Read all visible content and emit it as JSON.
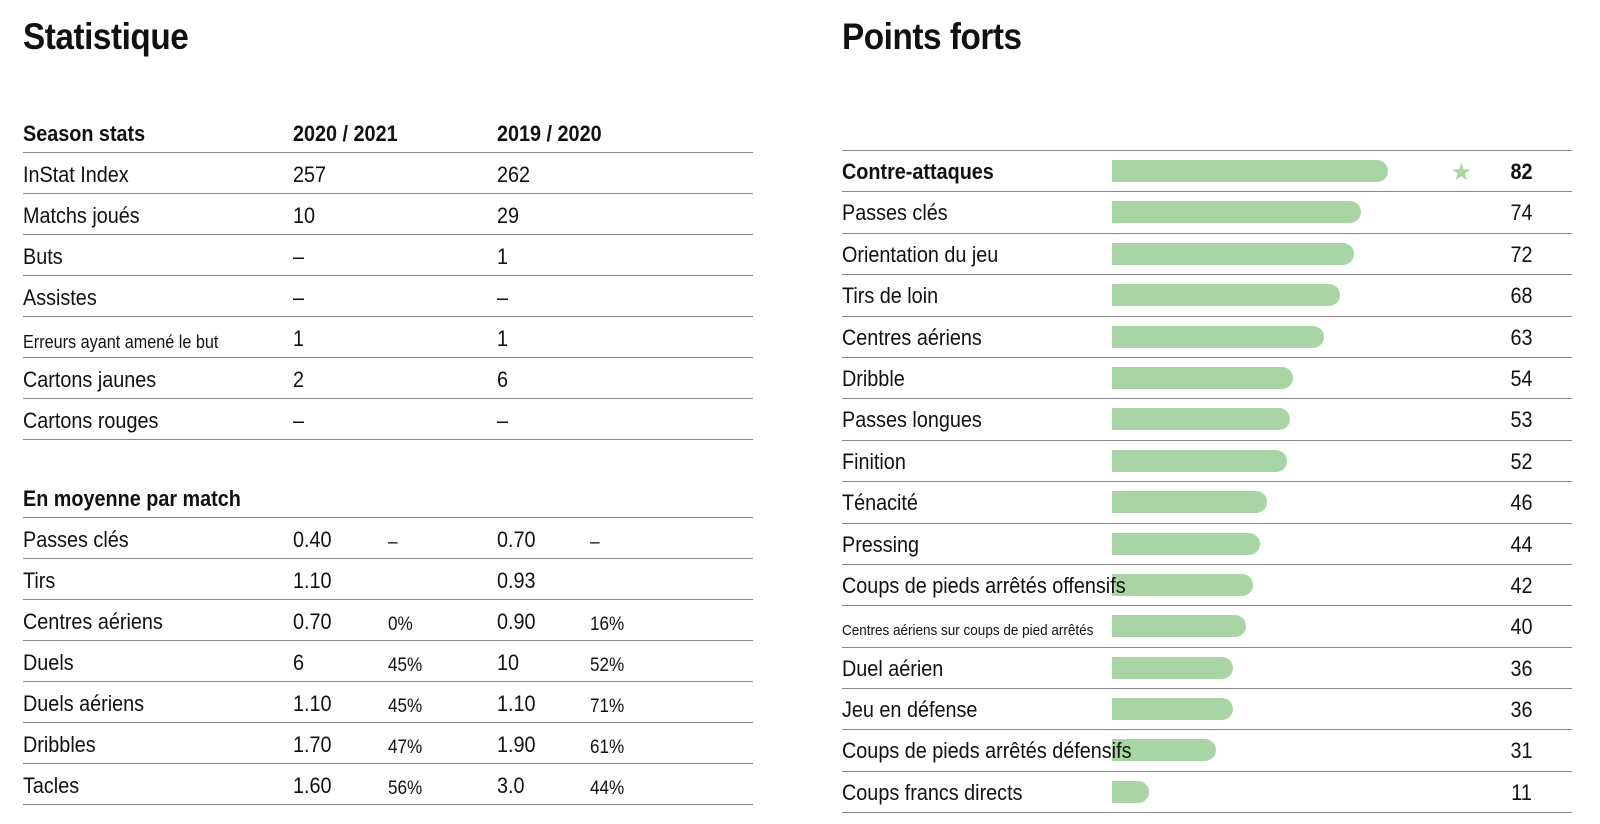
{
  "left": {
    "title": "Statistique",
    "season": {
      "header": [
        "Season stats",
        "2020 / 2021",
        "2019 / 2020"
      ],
      "rows": [
        {
          "label": "InStat Index",
          "v1": "257",
          "v2": "262"
        },
        {
          "label": "Matchs joués",
          "v1": "10",
          "v2": "29"
        },
        {
          "label": "Buts",
          "v1": "–",
          "v2": "1"
        },
        {
          "label": "Assistes",
          "v1": "–",
          "v2": "–"
        },
        {
          "label": "Erreurs ayant amené le but",
          "v1": "1",
          "v2": "1"
        },
        {
          "label": "Cartons jaunes",
          "v1": "2",
          "v2": "6"
        },
        {
          "label": "Cartons rouges",
          "v1": "–",
          "v2": "–"
        }
      ]
    },
    "average": {
      "header": "En moyenne par match",
      "rows": [
        {
          "label": "Passes clés",
          "v1": "0.40",
          "p1": "–",
          "v2": "0.70",
          "p2": "–"
        },
        {
          "label": "Tirs",
          "v1": "1.10",
          "p1": "",
          "v2": "0.93",
          "p2": ""
        },
        {
          "label": "Centres aériens",
          "v1": "0.70",
          "p1": "0%",
          "v2": "0.90",
          "p2": "16%"
        },
        {
          "label": "Duels",
          "v1": "6",
          "p1": "45%",
          "v2": "10",
          "p2": "52%"
        },
        {
          "label": "Duels aériens",
          "v1": "1.10",
          "p1": "45%",
          "v2": "1.10",
          "p2": "71%"
        },
        {
          "label": "Dribbles",
          "v1": "1.70",
          "p1": "47%",
          "v2": "1.90",
          "p2": "61%"
        },
        {
          "label": "Tacles",
          "v1": "1.60",
          "p1": "56%",
          "v2": "3.0",
          "p2": "44%"
        }
      ]
    }
  },
  "right": {
    "title": "Points forts",
    "bar_color": "#a8d5a3",
    "items": [
      {
        "label": "Contre-attaques",
        "value": 82,
        "top": true
      },
      {
        "label": "Passes clés",
        "value": 74
      },
      {
        "label": "Orientation du jeu",
        "value": 72
      },
      {
        "label": "Tirs de loin",
        "value": 68
      },
      {
        "label": "Centres aériens",
        "value": 63
      },
      {
        "label": "Dribble",
        "value": 54
      },
      {
        "label": "Passes longues",
        "value": 53
      },
      {
        "label": "Finition",
        "value": 52
      },
      {
        "label": "Ténacité",
        "value": 46
      },
      {
        "label": "Pressing",
        "value": 44
      },
      {
        "label": "Coups de pieds arrêtés offensifs",
        "value": 42
      },
      {
        "label": "Centres aériens sur coups de pied arrêtés",
        "value": 40,
        "small": true
      },
      {
        "label": "Duel aérien",
        "value": 36
      },
      {
        "label": "Jeu en défense",
        "value": 36
      },
      {
        "label": "Coups de pieds arrêtés défensifs",
        "value": 31
      },
      {
        "label": "Coups francs directs",
        "value": 11
      }
    ]
  }
}
